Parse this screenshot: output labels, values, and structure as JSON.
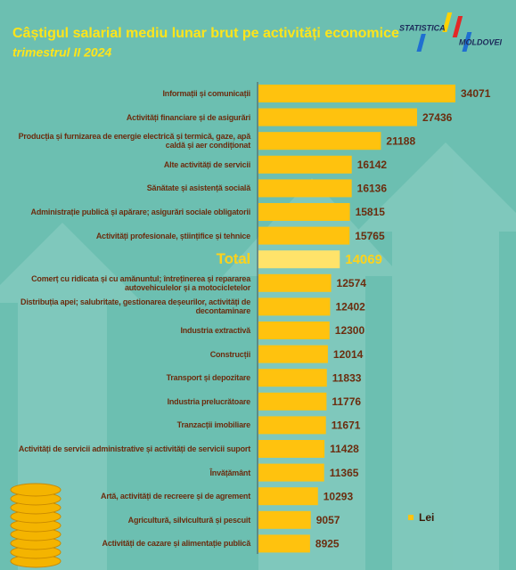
{
  "chart_data": {
    "type": "bar",
    "orientation": "horizontal",
    "title": "Câștigul salarial mediu lunar brut pe activități economice",
    "subtitle": "trimestrul II 2024",
    "logo": {
      "top": "STATISTICA",
      "bottom": "MOLDOVEI"
    },
    "categories": [
      "Informații și comunicații",
      "Activități financiare și de asigurări",
      "Producția și furnizarea de energie electrică și termică, gaze, apă\ncaldă și aer condiționat",
      "Alte activități de servicii",
      "Sănătate și asistență socială",
      "Administrație publică și apărare; asigurări sociale obligatorii",
      "Activități profesionale, științifice și tehnice",
      "Total",
      "Comerț cu ridicata și cu amănuntul; întreținerea și repararea\nautovehiculelor și a motocicletelor",
      "Distribuția apei; salubritate, gestionarea deșeurilor, activități de\ndecontaminare",
      "Industria extractivă",
      "Construcții",
      "Transport și depozitare",
      "Industria prelucrătoare",
      "Tranzacții imobiliare",
      "Activități de servicii administrative și activități de servicii suport",
      "Învățământ",
      "Artă, activități de recreere și de agrement",
      "Agricultură, silvicultură și pescuit",
      "Activități de cazare și alimentație publică"
    ],
    "series": [
      {
        "name": "Lei",
        "color": "#ffc20e",
        "values": [
          34071,
          27436,
          21188,
          16142,
          16136,
          15815,
          15765,
          14069,
          12574,
          12402,
          12300,
          12014,
          11833,
          11776,
          11671,
          11428,
          11365,
          10293,
          9057,
          8925
        ]
      }
    ],
    "emphasis": "Total",
    "legend": "bottom-right"
  }
}
